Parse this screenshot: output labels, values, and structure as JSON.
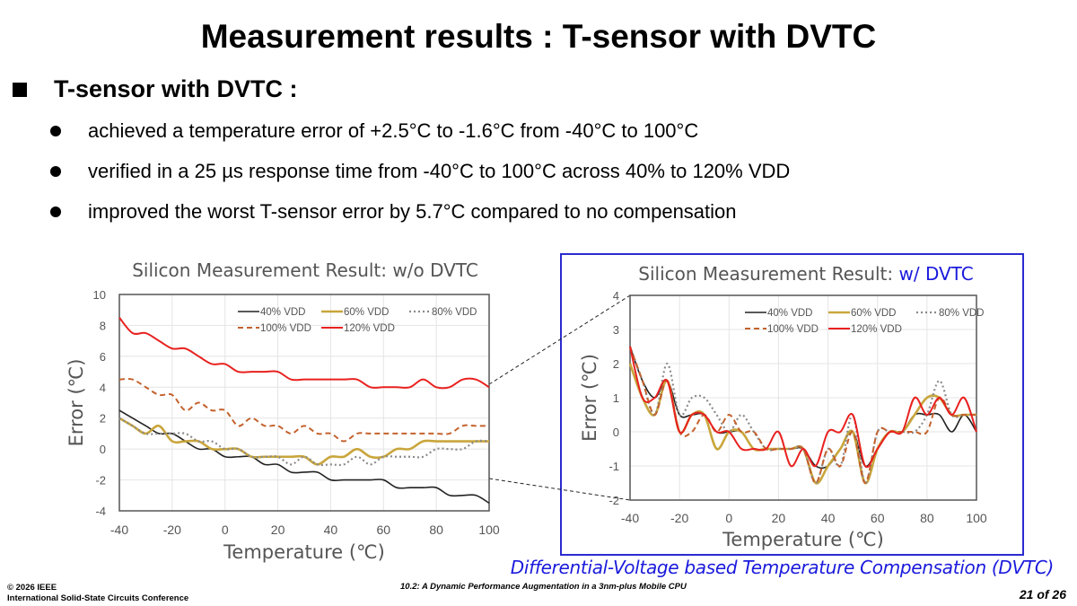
{
  "slide": {
    "title": "Measurement results : T-sensor with DVTC",
    "heading": "T-sensor with DVTC :",
    "bullets": [
      "achieved a temperature error of +2.5°C to -1.6°C from -40°C to 100°C",
      "verified in a 25 µs response time from -40°C to 100°C across 40% to 120% VDD",
      "improved the worst T-sensor error by 5.7°C compared to no compensation"
    ],
    "dvtc_caption": "Differential-Voltage based Temperature Compensation (DVTC)",
    "footer": {
      "copyright": "© 2026 IEEE",
      "conference": "International Solid-State Circuits Conference",
      "paper": "10.2: A Dynamic Performance Augmentation in a 3nm-plus Mobile CPU",
      "page": "21 of 26"
    }
  },
  "colors": {
    "v40": "#222222",
    "v60": "#c9a63c",
    "v80": "#8a8a8a",
    "v100": "#c4622d",
    "v120": "#e8211f",
    "accent": "#1a1adc",
    "frame": "#2b2bd0"
  },
  "chart_data": [
    {
      "type": "line",
      "title": "Silicon Measurement Result: w/o DVTC",
      "title_highlight": "",
      "xlabel": "Temperature (℃)",
      "ylabel": "Error (℃)",
      "xlim": [
        -40,
        100
      ],
      "ylim": [
        -4,
        10
      ],
      "xticks": [
        "-40",
        "-20",
        "0",
        "20",
        "40",
        "60",
        "80",
        "100"
      ],
      "yticks": [
        "-4",
        "-2",
        "0",
        "2",
        "4",
        "6",
        "8",
        "10"
      ],
      "grid": true,
      "legend": "top-right",
      "x": [
        -40,
        -35,
        -30,
        -25,
        -20,
        -15,
        -10,
        -5,
        0,
        5,
        10,
        15,
        20,
        25,
        30,
        35,
        40,
        45,
        50,
        55,
        60,
        65,
        70,
        75,
        80,
        85,
        90,
        95,
        100
      ],
      "series": [
        {
          "name": "40% VDD",
          "style": "solid",
          "color_key": "v40",
          "values": [
            2.5,
            2,
            1.5,
            1,
            1,
            0.5,
            0,
            0,
            -0.5,
            -0.5,
            -0.5,
            -1,
            -1,
            -1.5,
            -1.5,
            -1.5,
            -2,
            -2,
            -2,
            -2,
            -2,
            -2.5,
            -2.5,
            -2.5,
            -2.5,
            -3,
            -3,
            -3,
            -3.5
          ]
        },
        {
          "name": "60% VDD",
          "style": "thick",
          "color_key": "v60",
          "values": [
            2,
            1.5,
            1,
            1.5,
            0.5,
            0.5,
            0.5,
            0,
            0,
            0,
            -0.5,
            -0.5,
            -0.5,
            -0.5,
            -0.5,
            -1,
            -0.5,
            -0.5,
            0,
            -0.5,
            -0.5,
            0,
            0,
            0.5,
            0.5,
            0.5,
            0.5,
            0.5,
            0.5
          ]
        },
        {
          "name": "80% VDD",
          "style": "dotted",
          "color_key": "v80",
          "values": [
            2,
            1.5,
            1,
            1,
            1,
            1,
            0.5,
            0.5,
            0,
            0,
            -0.5,
            -0.5,
            -0.5,
            -1,
            -0.5,
            -1,
            -1,
            -1,
            -0.5,
            -1,
            -0.5,
            -0.5,
            -0.5,
            -0.5,
            0,
            0,
            0,
            0.5,
            0.5
          ]
        },
        {
          "name": "100% VDD",
          "style": "dashed",
          "color_key": "v100",
          "values": [
            4.5,
            4.5,
            4,
            3.5,
            3.5,
            2.5,
            3,
            2.5,
            2.5,
            1.5,
            2,
            1.5,
            1.5,
            1,
            1.5,
            1,
            1,
            0.5,
            1,
            1,
            1,
            1,
            1,
            1,
            1,
            1,
            1.5,
            1.5,
            1.5
          ]
        },
        {
          "name": "120% VDD",
          "style": "solid",
          "color_key": "v120",
          "values": [
            8.5,
            7.5,
            7.5,
            7,
            6.5,
            6.5,
            6,
            5.5,
            5.5,
            5,
            5,
            5,
            5,
            4.5,
            4.5,
            4.5,
            4.5,
            4.5,
            4.5,
            4,
            4,
            4,
            4,
            4.5,
            4,
            4,
            4.5,
            4.5,
            4
          ]
        }
      ]
    },
    {
      "type": "line",
      "title": "Silicon Measurement Result: ",
      "title_highlight": "w/ DVTC",
      "xlabel": "Temperature (℃)",
      "ylabel": "Error (℃)",
      "xlim": [
        -40,
        100
      ],
      "ylim": [
        -2,
        4
      ],
      "xticks": [
        "-40",
        "-20",
        "0",
        "20",
        "40",
        "60",
        "80",
        "100"
      ],
      "yticks": [
        "-2",
        "-1",
        "0",
        "1",
        "2",
        "3",
        "4"
      ],
      "grid": true,
      "legend": "top-right",
      "x": [
        -40,
        -35,
        -30,
        -25,
        -20,
        -15,
        -10,
        -5,
        0,
        5,
        10,
        15,
        20,
        25,
        30,
        35,
        40,
        45,
        50,
        55,
        60,
        65,
        70,
        75,
        80,
        85,
        90,
        95,
        100
      ],
      "series": [
        {
          "name": "40% VDD",
          "style": "solid",
          "color_key": "v40",
          "values": [
            2.5,
            1.5,
            1,
            1.5,
            0.5,
            0.5,
            0.5,
            0,
            0,
            0,
            -0.5,
            -0.5,
            -0.5,
            -0.5,
            -0.5,
            -1,
            -1,
            -0.5,
            0,
            -1,
            -0.5,
            0,
            0,
            0.5,
            0.5,
            0.5,
            0,
            0.5,
            0
          ]
        },
        {
          "name": "60% VDD",
          "style": "thick",
          "color_key": "v60",
          "values": [
            2,
            1,
            0.5,
            1.5,
            0,
            0.5,
            0.5,
            -0.5,
            0,
            0,
            -0.5,
            -0.5,
            -0.5,
            -0.5,
            -0.5,
            -1.5,
            -1,
            -0.5,
            0,
            -1.5,
            -0.5,
            0,
            0,
            0.5,
            1,
            1,
            0.5,
            0.5,
            0.5
          ]
        },
        {
          "name": "80% VDD",
          "style": "dotted",
          "color_key": "v80",
          "values": [
            2.5,
            1.5,
            0.5,
            2,
            0.5,
            1,
            1,
            0.5,
            0,
            0.5,
            0,
            -0.5,
            -0.5,
            -0.5,
            -0.5,
            -1.5,
            -0.5,
            -1,
            0.5,
            -1.5,
            0,
            0,
            0,
            0,
            0.5,
            1.5,
            0.5,
            0.5,
            0.5
          ]
        },
        {
          "name": "100% VDD",
          "style": "dashed",
          "color_key": "v100",
          "values": [
            2.5,
            1.5,
            0.5,
            1.5,
            0,
            0,
            0.5,
            0,
            0.5,
            0,
            0,
            -0.5,
            -0.5,
            -0.5,
            -0.5,
            -1.5,
            -0.5,
            -1,
            0,
            -1.5,
            0,
            0,
            0,
            0,
            0,
            1,
            0.5,
            0.5,
            0.5
          ]
        },
        {
          "name": "120% VDD",
          "style": "solid",
          "color_key": "v120",
          "values": [
            2.5,
            1,
            1,
            1.5,
            0,
            0.5,
            0.5,
            0,
            0,
            -0.5,
            -0.5,
            -0.5,
            0,
            -1,
            -0.5,
            -1,
            0,
            0,
            0.5,
            -1,
            -0.5,
            0,
            0,
            1,
            0.5,
            1,
            0.5,
            1,
            0
          ]
        }
      ]
    }
  ]
}
